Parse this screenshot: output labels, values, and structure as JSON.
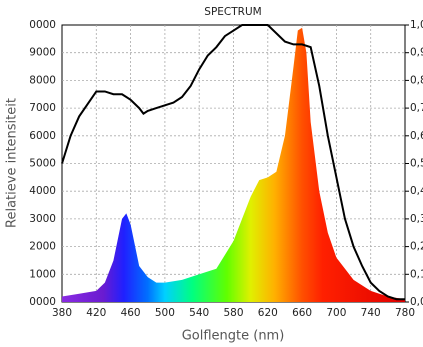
{
  "chart_data": {
    "type": "area",
    "title": "SPECTRUM",
    "x_label": "Golflengte (nm)",
    "y_label": "Relatieve intensiteit",
    "xlim": [
      380,
      780
    ],
    "xticks": [
      380,
      420,
      460,
      500,
      540,
      580,
      620,
      660,
      700,
      740,
      780
    ],
    "ylim": [
      0,
      10000
    ],
    "yticks": [
      {
        "value": 0,
        "label": "0000"
      },
      1000,
      2000,
      3000,
      4000,
      5000,
      6000,
      7000,
      8000,
      9000,
      {
        "value": 10000,
        "label": "0000"
      }
    ],
    "y2lim": [
      0,
      1
    ],
    "y2ticks": [
      {
        "value": 0,
        "label": "0,0"
      },
      {
        "value": 0.1,
        "label": "0,1"
      },
      {
        "value": 0.2,
        "label": "0,2"
      },
      {
        "value": 0.3,
        "label": "0,3"
      },
      {
        "value": 0.4,
        "label": "0,4"
      },
      {
        "value": 0.5,
        "label": "0,5"
      },
      {
        "value": 0.6,
        "label": "0,6"
      },
      {
        "value": 0.7,
        "label": "0,7"
      },
      {
        "value": 0.8,
        "label": "0,8"
      },
      {
        "value": 0.9,
        "label": "0,9"
      },
      {
        "value": 1,
        "label": "1,0"
      }
    ],
    "grid": true,
    "series": [
      {
        "type": "area",
        "x": [
          380,
          400,
          420,
          430,
          440,
          450,
          455,
          460,
          470,
          480,
          490,
          500,
          520,
          540,
          560,
          580,
          600,
          610,
          620,
          630,
          640,
          650,
          655,
          660,
          665,
          670,
          680,
          690,
          700,
          720,
          740,
          760,
          780
        ],
        "values": [
          200,
          300,
          400,
          700,
          1500,
          3000,
          3200,
          2800,
          1300,
          900,
          700,
          700,
          800,
          1000,
          1200,
          2200,
          3800,
          4400,
          4500,
          4700,
          6000,
          8500,
          9800,
          9900,
          9000,
          6500,
          4000,
          2500,
          1600,
          800,
          400,
          200,
          100
        ]
      },
      {
        "type": "line",
        "axis": "y2",
        "color": "#000000",
        "x": [
          380,
          390,
          400,
          420,
          430,
          440,
          450,
          460,
          470,
          475,
          480,
          490,
          500,
          510,
          520,
          530,
          540,
          550,
          560,
          570,
          580,
          590,
          600,
          610,
          620,
          640,
          650,
          660,
          670,
          680,
          690,
          700,
          710,
          720,
          730,
          740,
          750,
          760,
          770,
          780
        ],
        "values": [
          0.5,
          0.6,
          0.67,
          0.76,
          0.76,
          0.75,
          0.75,
          0.73,
          0.7,
          0.68,
          0.69,
          0.7,
          0.71,
          0.72,
          0.74,
          0.78,
          0.84,
          0.89,
          0.92,
          0.96,
          0.98,
          1,
          1,
          1,
          1,
          0.94,
          0.93,
          0.93,
          0.92,
          0.78,
          0.6,
          0.45,
          0.3,
          0.2,
          0.13,
          0.07,
          0.04,
          0.02,
          0.01,
          0.01
        ]
      }
    ]
  }
}
